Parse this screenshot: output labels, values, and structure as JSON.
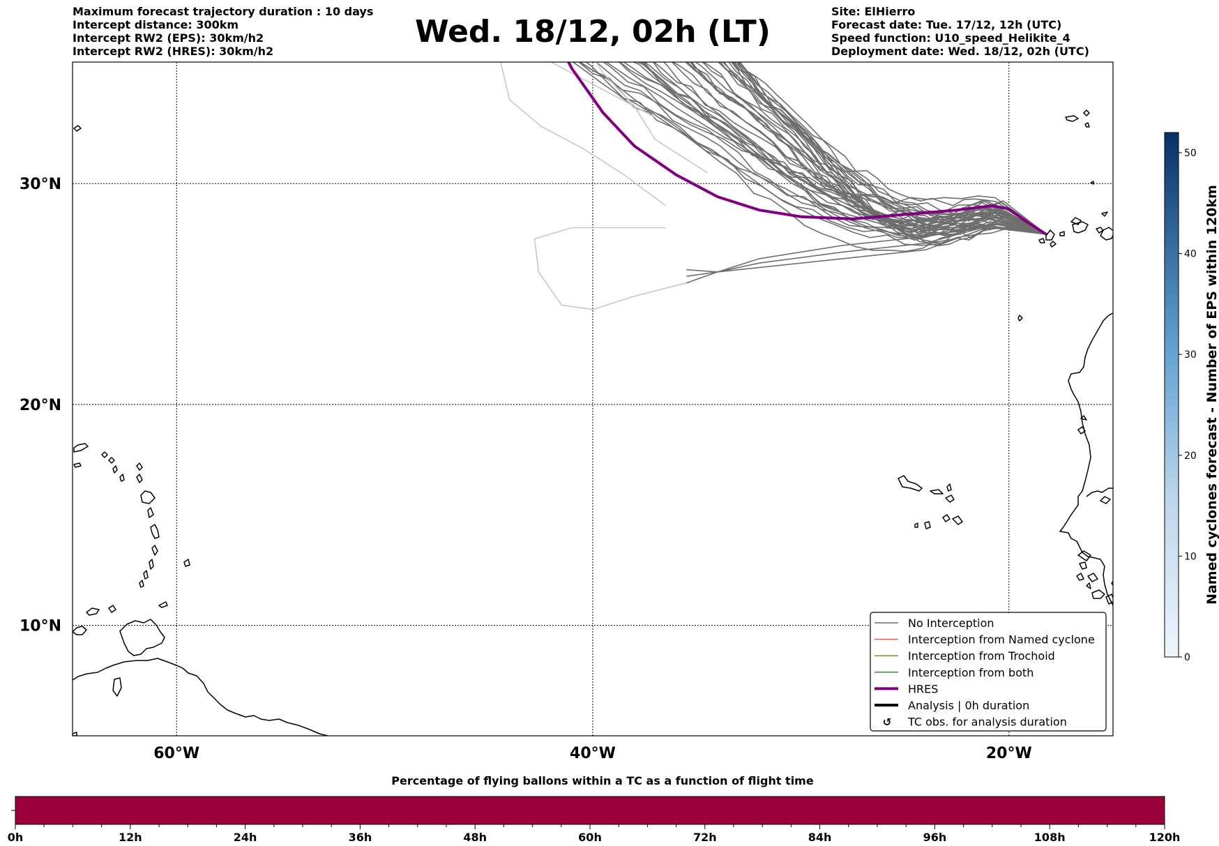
{
  "header": {
    "left_lines": [
      "Maximum forecast trajectory duration : 10 days",
      "Intercept distance: 300km",
      "Intercept RW2 (EPS):  30km/h2",
      "Intercept RW2 (HRES): 30km/h2"
    ],
    "title": "Wed. 18/12, 02h (LT)",
    "right_lines": [
      "Site: ElHierro",
      "Forecast date: Tue. 17/12, 12h (UTC)",
      "Speed function: U10_speed_Helikite_4",
      "Deployment date: Wed. 18/12, 02h (UTC)"
    ]
  },
  "map": {
    "lon_range": [
      -65,
      -15
    ],
    "lat_range": [
      5,
      35.5
    ],
    "lat_labels": [
      "30°N",
      "20°N",
      "10°N"
    ],
    "lat_values": [
      30,
      20,
      10
    ],
    "lon_labels": [
      "60°W",
      "40°W",
      "20°W"
    ],
    "lon_values": [
      -60,
      -40,
      -20
    ],
    "deployment_site": {
      "lon": -18.2,
      "lat": 27.7
    },
    "colors": {
      "no_interception": "#6e6e6e",
      "no_interception_faint": "#c8c8c8",
      "named_cyclone": "#e8623a",
      "trochoid": "#8c8c1e",
      "both": "#2a9a2a",
      "hres": "#800080",
      "analysis": "#000000"
    }
  },
  "legend": {
    "items": [
      {
        "label": "No Interception",
        "style": "no_interception"
      },
      {
        "label": "Interception from Named cyclone",
        "style": "named_cyclone"
      },
      {
        "label": "Interception from Trochoid",
        "style": "trochoid"
      },
      {
        "label": "Interception from both",
        "style": "both"
      },
      {
        "label": "HRES",
        "style": "hres"
      },
      {
        "label": "Analysis | 0h duration",
        "style": "analysis"
      },
      {
        "label": "TC obs. for analysis duration",
        "style": "tc_obs"
      }
    ]
  },
  "colorbar_right": {
    "label": "Named cyclones forecast - Number of EPS within 120km",
    "ticks": [
      "0",
      "10",
      "20",
      "30",
      "40",
      "50"
    ],
    "tick_values": [
      0,
      10,
      20,
      30,
      40,
      50
    ],
    "range": [
      0,
      52
    ],
    "color_low": "#e8f1fb",
    "color_high": "#08306b"
  },
  "timeline": {
    "title": "Percentage of flying ballons within a TC as a function of flight time",
    "bar_color": "#9b003a",
    "ticks": [
      "0h",
      "12h",
      "24h",
      "36h",
      "48h",
      "60h",
      "72h",
      "84h",
      "96h",
      "108h",
      "120h"
    ],
    "max_hours": 120
  }
}
